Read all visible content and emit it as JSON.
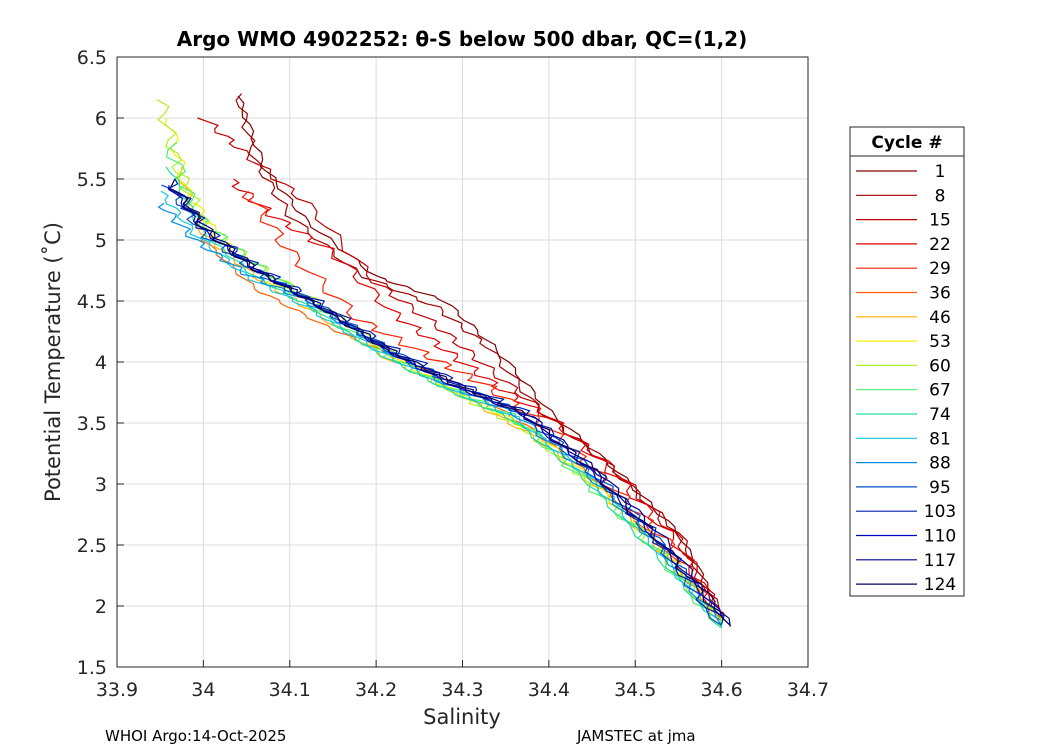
{
  "chart_data": {
    "type": "line",
    "title": "Argo WMO 4902252: θ-S below 500 dbar,  QC=(1,2)",
    "xlabel": "Salinity",
    "ylabel": "Potential Temperature (˚C)",
    "xlim": [
      33.9,
      34.7
    ],
    "ylim": [
      1.5,
      6.5
    ],
    "xticks": [
      "33.9",
      "34",
      "34.1",
      "34.2",
      "34.3",
      "34.4",
      "34.5",
      "34.6",
      "34.7"
    ],
    "yticks": [
      "1.5",
      "2",
      "2.5",
      "3",
      "3.5",
      "4",
      "4.5",
      "5",
      "5.5",
      "6",
      "6.5"
    ],
    "grid": true,
    "legend_title": "Cycle #",
    "legend_position": "right",
    "series": [
      {
        "name": "1",
        "color": "#800000",
        "points": [
          [
            34.04,
            6.18
          ],
          [
            34.07,
            5.6
          ],
          [
            34.12,
            5.15
          ],
          [
            34.2,
            4.7
          ],
          [
            34.28,
            4.5
          ],
          [
            34.34,
            4.1
          ],
          [
            34.4,
            3.6
          ],
          [
            34.48,
            3.1
          ],
          [
            34.55,
            2.6
          ],
          [
            34.6,
            1.92
          ]
        ]
      },
      {
        "name": "8",
        "color": "#a00000",
        "points": [
          [
            34.04,
            6.2
          ],
          [
            34.06,
            5.65
          ],
          [
            34.1,
            5.2
          ],
          [
            34.18,
            4.72
          ],
          [
            34.27,
            4.45
          ],
          [
            34.33,
            4.12
          ],
          [
            34.39,
            3.6
          ],
          [
            34.47,
            3.15
          ],
          [
            34.55,
            2.6
          ],
          [
            34.6,
            1.92
          ]
        ]
      },
      {
        "name": "15",
        "color": "#c00000",
        "points": [
          [
            34.0,
            6.0
          ],
          [
            34.05,
            5.7
          ],
          [
            34.12,
            5.3
          ],
          [
            34.2,
            4.65
          ],
          [
            34.27,
            4.3
          ],
          [
            34.33,
            3.95
          ],
          [
            34.4,
            3.55
          ],
          [
            34.48,
            3.1
          ],
          [
            34.55,
            2.55
          ],
          [
            34.6,
            1.9
          ]
        ]
      },
      {
        "name": "22",
        "color": "#e00000",
        "points": [
          [
            34.03,
            5.5
          ],
          [
            34.08,
            5.2
          ],
          [
            34.15,
            4.9
          ],
          [
            34.22,
            4.4
          ],
          [
            34.28,
            4.1
          ],
          [
            34.34,
            3.8
          ],
          [
            34.41,
            3.5
          ],
          [
            34.48,
            3.05
          ],
          [
            34.55,
            2.5
          ],
          [
            34.6,
            1.88
          ]
        ]
      },
      {
        "name": "29",
        "color": "#ff2000",
        "points": [
          [
            34.05,
            5.4
          ],
          [
            34.1,
            4.9
          ],
          [
            34.18,
            4.35
          ],
          [
            34.26,
            4.05
          ],
          [
            34.33,
            3.8
          ],
          [
            34.4,
            3.45
          ],
          [
            34.47,
            3.0
          ],
          [
            34.54,
            2.5
          ],
          [
            34.6,
            1.88
          ]
        ]
      },
      {
        "name": "36",
        "color": "#ff6000",
        "points": [
          [
            34.0,
            5.0
          ],
          [
            34.06,
            4.6
          ],
          [
            34.14,
            4.3
          ],
          [
            34.22,
            4.05
          ],
          [
            34.3,
            3.8
          ],
          [
            34.38,
            3.45
          ],
          [
            34.46,
            3.0
          ],
          [
            34.53,
            2.5
          ],
          [
            34.6,
            1.87
          ]
        ]
      },
      {
        "name": "46",
        "color": "#ffb000",
        "points": [
          [
            33.97,
            5.6
          ],
          [
            34.0,
            5.05
          ],
          [
            34.06,
            4.7
          ],
          [
            34.13,
            4.4
          ],
          [
            34.22,
            4.0
          ],
          [
            34.3,
            3.72
          ],
          [
            34.38,
            3.4
          ],
          [
            34.46,
            2.95
          ],
          [
            34.53,
            2.45
          ],
          [
            34.6,
            1.86
          ]
        ]
      },
      {
        "name": "53",
        "color": "#f0f000",
        "points": [
          [
            33.96,
            6.0
          ],
          [
            33.98,
            5.4
          ],
          [
            34.02,
            5.0
          ],
          [
            34.08,
            4.65
          ],
          [
            34.15,
            4.4
          ],
          [
            34.23,
            4.0
          ],
          [
            34.31,
            3.7
          ],
          [
            34.39,
            3.4
          ],
          [
            34.46,
            2.95
          ],
          [
            34.54,
            2.4
          ],
          [
            34.6,
            1.86
          ]
        ]
      },
      {
        "name": "60",
        "color": "#b0f020",
        "points": [
          [
            33.95,
            6.15
          ],
          [
            33.97,
            5.6
          ],
          [
            34.0,
            5.15
          ],
          [
            34.06,
            4.8
          ],
          [
            34.14,
            4.45
          ],
          [
            34.22,
            4.05
          ],
          [
            34.3,
            3.72
          ],
          [
            34.38,
            3.42
          ],
          [
            34.46,
            2.95
          ],
          [
            34.53,
            2.42
          ],
          [
            34.6,
            1.84
          ]
        ]
      },
      {
        "name": "67",
        "color": "#50f070",
        "points": [
          [
            33.96,
            5.8
          ],
          [
            33.99,
            5.2
          ],
          [
            34.05,
            4.85
          ],
          [
            34.12,
            4.5
          ],
          [
            34.2,
            4.1
          ],
          [
            34.28,
            3.8
          ],
          [
            34.36,
            3.55
          ],
          [
            34.44,
            3.05
          ],
          [
            34.52,
            2.5
          ],
          [
            34.6,
            1.82
          ]
        ]
      },
      {
        "name": "74",
        "color": "#20e0a0",
        "points": [
          [
            33.96,
            5.6
          ],
          [
            34.0,
            5.05
          ],
          [
            34.06,
            4.7
          ],
          [
            34.13,
            4.42
          ],
          [
            34.2,
            4.08
          ],
          [
            34.28,
            3.78
          ],
          [
            34.36,
            3.52
          ],
          [
            34.44,
            3.05
          ],
          [
            34.52,
            2.45
          ],
          [
            34.6,
            1.82
          ]
        ]
      },
      {
        "name": "81",
        "color": "#10c8e0",
        "points": [
          [
            33.95,
            5.4
          ],
          [
            33.99,
            5.05
          ],
          [
            34.05,
            4.7
          ],
          [
            34.12,
            4.45
          ],
          [
            34.2,
            4.1
          ],
          [
            34.28,
            3.8
          ],
          [
            34.36,
            3.55
          ],
          [
            34.44,
            3.1
          ],
          [
            34.52,
            2.5
          ],
          [
            34.6,
            1.83
          ]
        ]
      },
      {
        "name": "88",
        "color": "#0090e0",
        "points": [
          [
            33.95,
            5.3
          ],
          [
            33.99,
            5.0
          ],
          [
            34.05,
            4.72
          ],
          [
            34.12,
            4.5
          ],
          [
            34.2,
            4.15
          ],
          [
            34.28,
            3.82
          ],
          [
            34.36,
            3.58
          ],
          [
            34.44,
            3.12
          ],
          [
            34.52,
            2.55
          ],
          [
            34.6,
            1.84
          ]
        ]
      },
      {
        "name": "95",
        "color": "#0050c8",
        "points": [
          [
            33.96,
            5.45
          ],
          [
            34.0,
            5.05
          ],
          [
            34.06,
            4.75
          ],
          [
            34.13,
            4.48
          ],
          [
            34.21,
            4.12
          ],
          [
            34.29,
            3.82
          ],
          [
            34.37,
            3.58
          ],
          [
            34.45,
            3.1
          ],
          [
            34.53,
            2.5
          ],
          [
            34.6,
            1.84
          ]
        ]
      },
      {
        "name": "103",
        "color": "#0020b0",
        "points": [
          [
            33.96,
            5.5
          ],
          [
            34.0,
            5.1
          ],
          [
            34.06,
            4.78
          ],
          [
            34.13,
            4.5
          ],
          [
            34.21,
            4.14
          ],
          [
            34.29,
            3.84
          ],
          [
            34.37,
            3.6
          ],
          [
            34.45,
            3.12
          ],
          [
            34.53,
            2.52
          ],
          [
            34.6,
            1.85
          ]
        ]
      },
      {
        "name": "110",
        "color": "#0000c0",
        "points": [
          [
            33.96,
            5.45
          ],
          [
            34.0,
            5.08
          ],
          [
            34.06,
            4.75
          ],
          [
            34.13,
            4.47
          ],
          [
            34.21,
            4.1
          ],
          [
            34.29,
            3.8
          ],
          [
            34.37,
            3.57
          ],
          [
            34.45,
            3.1
          ],
          [
            34.53,
            2.5
          ],
          [
            34.61,
            1.84
          ]
        ]
      },
      {
        "name": "117",
        "color": "#000090",
        "points": [
          [
            33.97,
            5.4
          ],
          [
            34.01,
            5.05
          ],
          [
            34.07,
            4.72
          ],
          [
            34.14,
            4.44
          ],
          [
            34.22,
            4.08
          ],
          [
            34.3,
            3.8
          ],
          [
            34.38,
            3.55
          ],
          [
            34.46,
            3.08
          ],
          [
            34.54,
            2.5
          ],
          [
            34.61,
            1.84
          ]
        ]
      },
      {
        "name": "124",
        "color": "#000060",
        "points": [
          [
            33.96,
            5.5
          ],
          [
            34.0,
            5.1
          ],
          [
            34.06,
            4.76
          ],
          [
            34.13,
            4.48
          ],
          [
            34.21,
            4.12
          ],
          [
            34.29,
            3.82
          ],
          [
            34.37,
            3.58
          ],
          [
            34.45,
            3.12
          ],
          [
            34.53,
            2.52
          ],
          [
            34.61,
            1.83
          ]
        ]
      }
    ]
  },
  "footer": {
    "left": "WHOI Argo:14-Oct-2025",
    "right": "JAMSTEC at jma"
  }
}
